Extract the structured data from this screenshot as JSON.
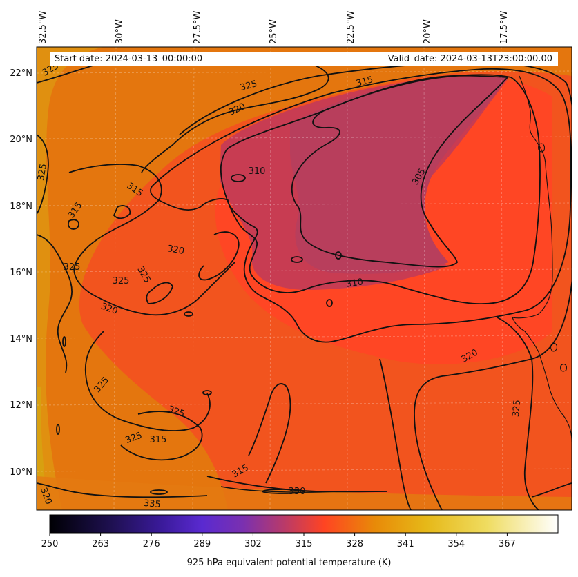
{
  "header": {
    "start_date": "Start date: 2024-03-13_00:00:00",
    "valid_date": "Valid_date: 2024-03-13T23:00:00.00"
  },
  "axes": {
    "lon_labels": [
      "32.5°W",
      "30°W",
      "27.5°W",
      "25°W",
      "22.5°W",
      "20°W",
      "17.5°W"
    ],
    "lat_labels": [
      "22°N",
      "20°N",
      "18°N",
      "16°N",
      "14°N",
      "12°N",
      "10°N"
    ]
  },
  "contour_labels": [
    "325",
    "325",
    "320",
    "315",
    "325",
    "315",
    "315",
    "310",
    "305",
    "310",
    "320",
    "325",
    "325",
    "320",
    "325",
    "320",
    "325",
    "325",
    "325",
    "315",
    "315",
    "330",
    "335",
    "320",
    "325"
  ],
  "colorbar": {
    "title": "925 hPa equivalent potential temperature (K)",
    "ticks": [
      "250",
      "263",
      "276",
      "289",
      "302",
      "315",
      "328",
      "341",
      "354",
      "367"
    ],
    "colors": [
      "#000000",
      "#2a1c6e",
      "#5a2ec8",
      "#8a3aa0",
      "#c83a5a",
      "#ff4422",
      "#e88a0a",
      "#eec020",
      "#f4e890",
      "#ffffff"
    ]
  },
  "icons": {
    "map": "map-icon"
  }
}
